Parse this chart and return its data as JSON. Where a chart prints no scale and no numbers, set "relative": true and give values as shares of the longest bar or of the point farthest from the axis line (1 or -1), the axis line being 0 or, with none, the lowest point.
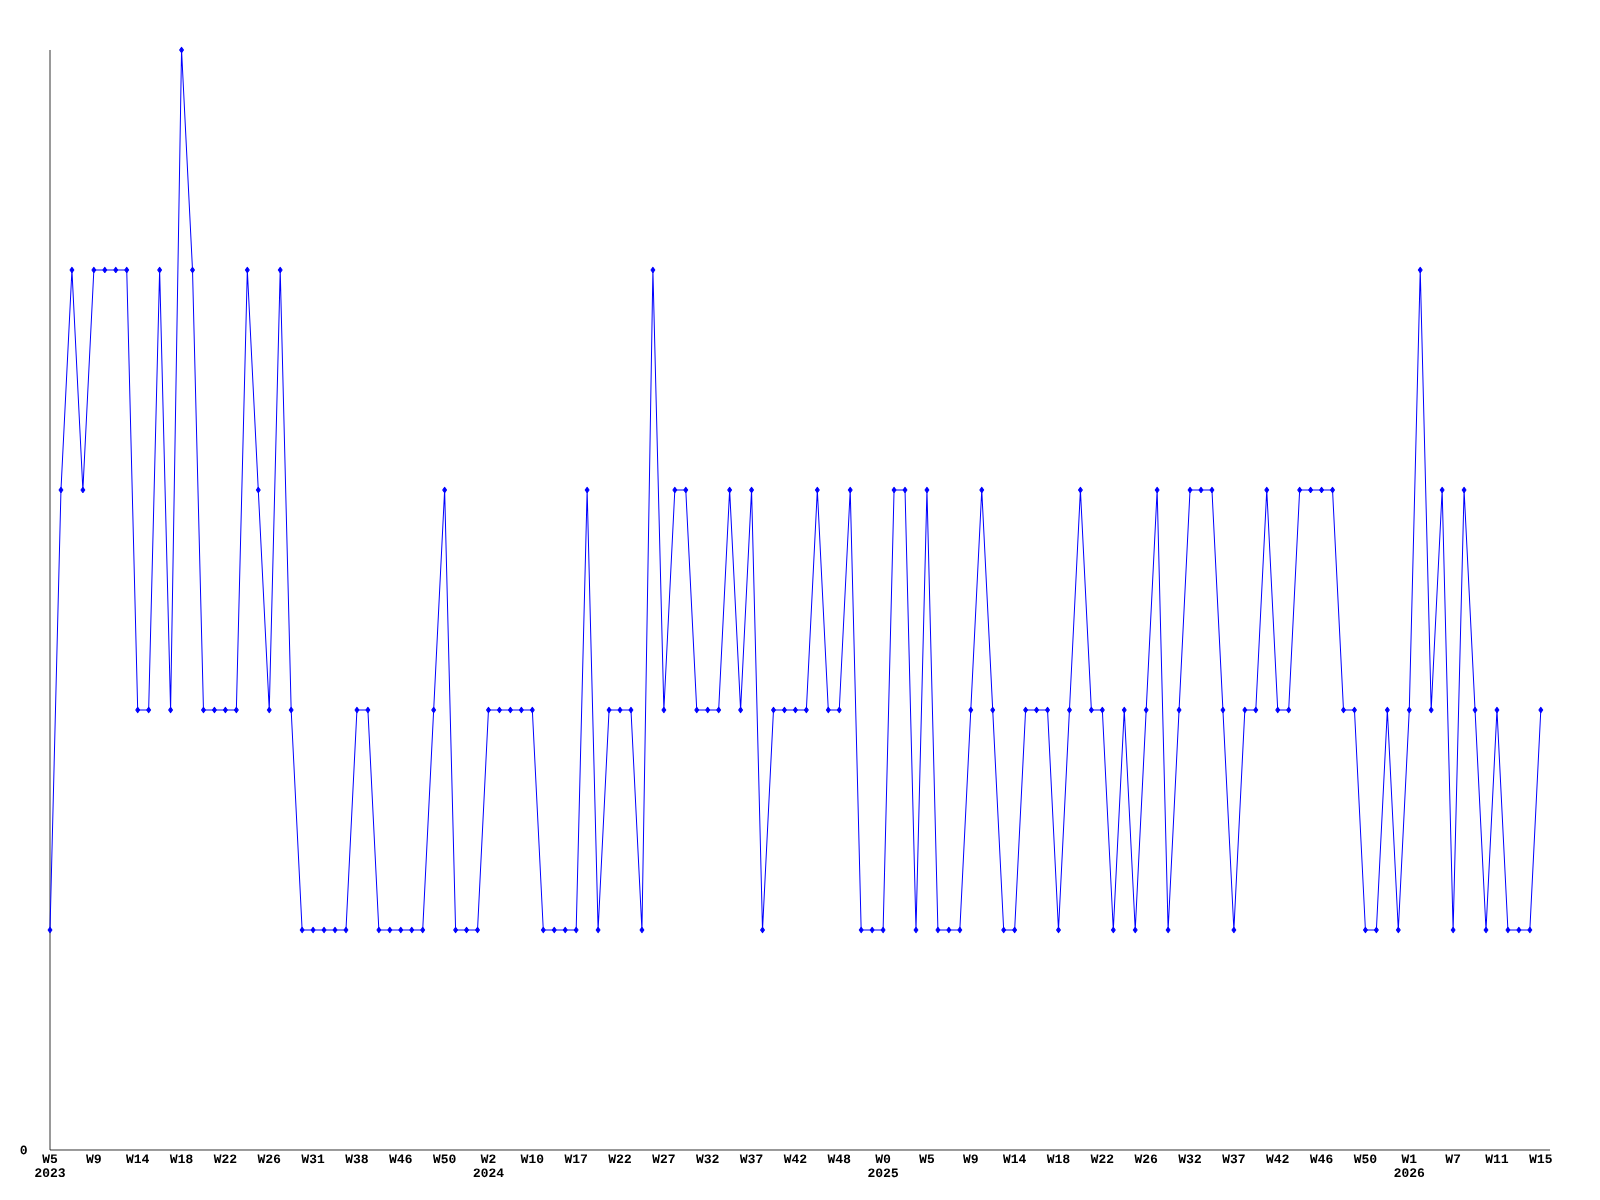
{
  "chart_data": {
    "type": "line",
    "relative": true,
    "color": "#0000ff",
    "marker": "diamond",
    "line_style": "solid",
    "categories": [
      "W5 2023",
      null,
      null,
      null,
      "W9",
      null,
      null,
      null,
      "W14",
      null,
      null,
      null,
      "W18",
      null,
      null,
      null,
      "W22",
      null,
      null,
      null,
      "W26",
      null,
      null,
      null,
      "W31",
      null,
      null,
      null,
      "W38",
      null,
      null,
      null,
      "W46",
      null,
      null,
      null,
      "W50",
      null,
      null,
      null,
      "W2 2024",
      null,
      null,
      null,
      "W10",
      null,
      null,
      null,
      "W17",
      null,
      null,
      null,
      "W22",
      null,
      null,
      null,
      "W27",
      null,
      null,
      null,
      "W32",
      null,
      null,
      null,
      "W37",
      null,
      null,
      null,
      "W42",
      null,
      null,
      null,
      "W48",
      null,
      null,
      null,
      "W0 2025",
      null,
      null,
      null,
      "W5",
      null,
      null,
      null,
      "W9",
      null,
      null,
      null,
      "W14",
      null,
      null,
      null,
      "W18",
      null,
      null,
      null,
      "W22",
      null,
      null,
      null,
      "W26",
      null,
      null,
      null,
      "W32",
      null,
      null,
      null,
      "W37",
      null,
      null,
      null,
      "W42",
      null,
      null,
      null,
      "W46",
      null,
      null,
      null,
      "W50",
      null,
      null,
      null,
      "W1 2026",
      null,
      null,
      null,
      "W7",
      null,
      null,
      null,
      "W11",
      null,
      null,
      null,
      "W15"
    ],
    "values": [
      0.2,
      0.6,
      0.8,
      0.6,
      0.8,
      0.8,
      0.8,
      0.8,
      0.4,
      0.4,
      0.8,
      0.4,
      1,
      0.8,
      0.4,
      0.4,
      0.4,
      0.4,
      0.8,
      0.6,
      0.4,
      0.8,
      0.4,
      0.2,
      0.2,
      0.2,
      0.2,
      0.2,
      0.4,
      0.4,
      0.2,
      0.2,
      0.2,
      0.2,
      0.2,
      0.4,
      0.6,
      0.2,
      0.2,
      0.2,
      0.4,
      0.4,
      0.4,
      0.4,
      0.4,
      0.2,
      0.2,
      0.2,
      0.2,
      0.6,
      0.2,
      0.4,
      0.4,
      0.4,
      0.2,
      0.8,
      0.4,
      0.6,
      0.6,
      0.4,
      0.4,
      0.4,
      0.6,
      0.4,
      0.6,
      0.2,
      0.4,
      0.4,
      0.4,
      0.4,
      0.6,
      0.4,
      0.4,
      0.6,
      0.2,
      0.2,
      0.2,
      0.6,
      0.6,
      0.2,
      0.6,
      0.2,
      0.2,
      0.2,
      0.4,
      0.6,
      0.4,
      0.2,
      0.2,
      0.4,
      0.4,
      0.4,
      0.2,
      0.4,
      0.6,
      0.4,
      0.4,
      0.2,
      0.4,
      0.2,
      0.4,
      0.6,
      0.2,
      0.4,
      0.6,
      0.6,
      0.6,
      0.4,
      0.2,
      0.4,
      0.4,
      0.6,
      0.4,
      0.4,
      0.6,
      0.6,
      0.6,
      0.6,
      0.4,
      0.4,
      0.2,
      0.2,
      0.4,
      0.2,
      0.4,
      0.8,
      0.4,
      0.6,
      0.2,
      0.6,
      0.4,
      0.2,
      0.4,
      0.2,
      0.2,
      0.2,
      0.4
    ],
    "annotations": [
      "0"
    ]
  }
}
